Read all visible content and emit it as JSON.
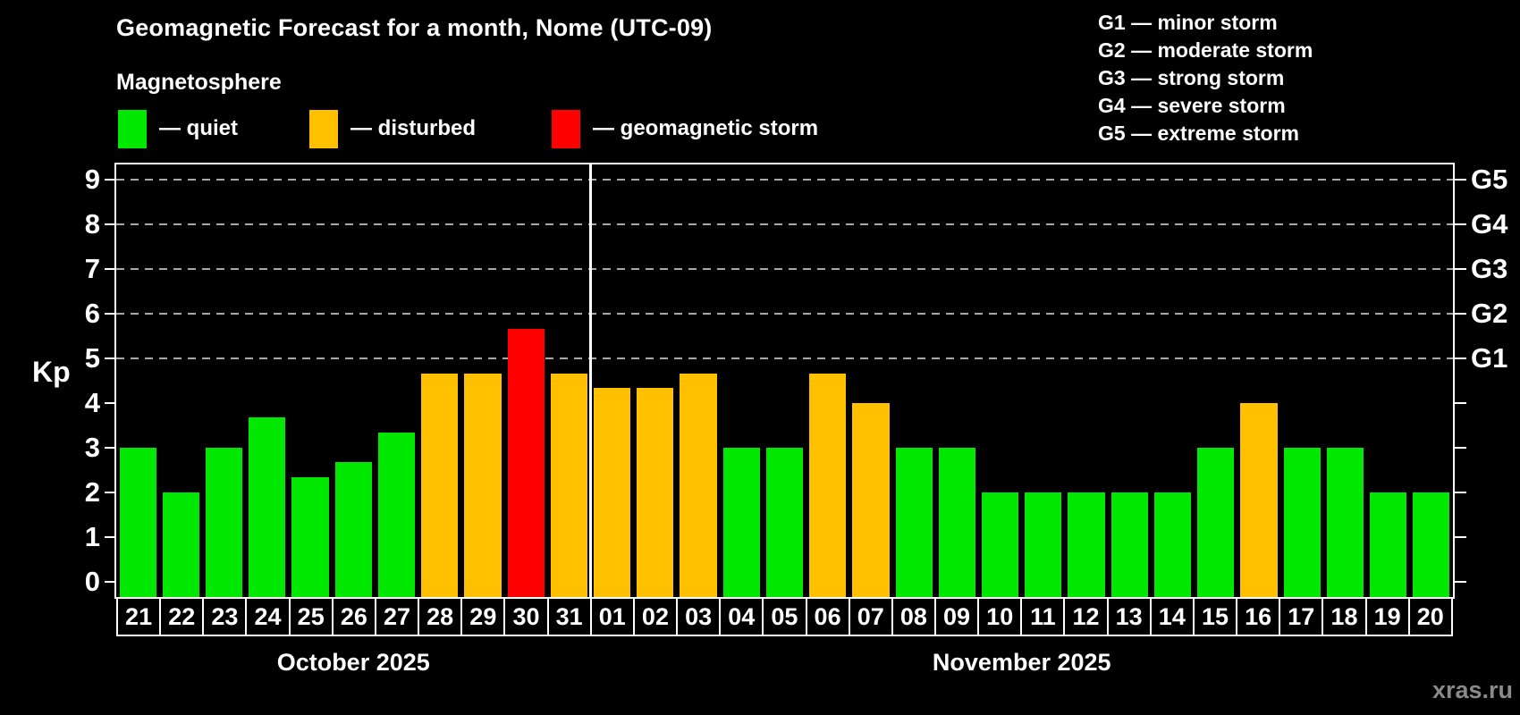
{
  "header": {
    "title": "Geomagnetic Forecast for a month, Nome (UTC-09)",
    "subtitle": "Magnetosphere"
  },
  "legend": {
    "items": [
      {
        "key": "quiet",
        "label": "— quiet",
        "color": "#00e800",
        "x": 132
      },
      {
        "key": "disturbed",
        "label": "— disturbed",
        "color": "#ffc000",
        "x": 346
      },
      {
        "key": "storm",
        "label": "— geomagnetic storm",
        "color": "#ff0000",
        "x": 617
      }
    ]
  },
  "gscale_legend": {
    "items": [
      "G1 — minor storm",
      "G2 — moderate storm",
      "G3 — strong storm",
      "G4 — severe storm",
      "G5 — extreme storm"
    ]
  },
  "watermark": "xras.ru",
  "chart_data": {
    "type": "bar",
    "title": "Geomagnetic Forecast for a month, Nome (UTC-09)",
    "ylabel": "Kp",
    "ylim": [
      -0.35,
      9.35
    ],
    "yticks": [
      0,
      1,
      2,
      3,
      4,
      5,
      6,
      7,
      8,
      9
    ],
    "gridlines_at": [
      5,
      6,
      7,
      8,
      9
    ],
    "grid": "dashed, only at storm levels",
    "legend_position": "top",
    "right_axis_labels": [
      {
        "kp": 5,
        "label": "G1"
      },
      {
        "kp": 6,
        "label": "G2"
      },
      {
        "kp": 7,
        "label": "G3"
      },
      {
        "kp": 8,
        "label": "G4"
      },
      {
        "kp": 9,
        "label": "G5"
      }
    ],
    "colors": {
      "quiet": "#00e800",
      "disturbed": "#ffc000",
      "storm": "#ff0000"
    },
    "months": [
      {
        "label": "October 2025",
        "days": 11
      },
      {
        "label": "November 2025",
        "days": 20
      }
    ],
    "bars": [
      {
        "date": "21",
        "value": 3.0,
        "status": "quiet"
      },
      {
        "date": "22",
        "value": 2.0,
        "status": "quiet"
      },
      {
        "date": "23",
        "value": 3.0,
        "status": "quiet"
      },
      {
        "date": "24",
        "value": 3.67,
        "status": "quiet"
      },
      {
        "date": "25",
        "value": 2.33,
        "status": "quiet"
      },
      {
        "date": "26",
        "value": 2.67,
        "status": "quiet"
      },
      {
        "date": "27",
        "value": 3.33,
        "status": "quiet"
      },
      {
        "date": "28",
        "value": 4.67,
        "status": "disturbed"
      },
      {
        "date": "29",
        "value": 4.67,
        "status": "disturbed"
      },
      {
        "date": "30",
        "value": 5.67,
        "status": "storm"
      },
      {
        "date": "31",
        "value": 4.67,
        "status": "disturbed"
      },
      {
        "date": "01",
        "value": 4.33,
        "status": "disturbed"
      },
      {
        "date": "02",
        "value": 4.33,
        "status": "disturbed"
      },
      {
        "date": "03",
        "value": 4.67,
        "status": "disturbed"
      },
      {
        "date": "04",
        "value": 3.0,
        "status": "quiet"
      },
      {
        "date": "05",
        "value": 3.0,
        "status": "quiet"
      },
      {
        "date": "06",
        "value": 4.67,
        "status": "disturbed"
      },
      {
        "date": "07",
        "value": 4.0,
        "status": "disturbed"
      },
      {
        "date": "08",
        "value": 3.0,
        "status": "quiet"
      },
      {
        "date": "09",
        "value": 3.0,
        "status": "quiet"
      },
      {
        "date": "10",
        "value": 2.0,
        "status": "quiet"
      },
      {
        "date": "11",
        "value": 2.0,
        "status": "quiet"
      },
      {
        "date": "12",
        "value": 2.0,
        "status": "quiet"
      },
      {
        "date": "13",
        "value": 2.0,
        "status": "quiet"
      },
      {
        "date": "14",
        "value": 2.0,
        "status": "quiet"
      },
      {
        "date": "15",
        "value": 3.0,
        "status": "quiet"
      },
      {
        "date": "16",
        "value": 4.0,
        "status": "disturbed"
      },
      {
        "date": "17",
        "value": 3.0,
        "status": "quiet"
      },
      {
        "date": "18",
        "value": 3.0,
        "status": "quiet"
      },
      {
        "date": "19",
        "value": 2.0,
        "status": "quiet"
      },
      {
        "date": "20",
        "value": 2.0,
        "status": "quiet"
      }
    ]
  }
}
